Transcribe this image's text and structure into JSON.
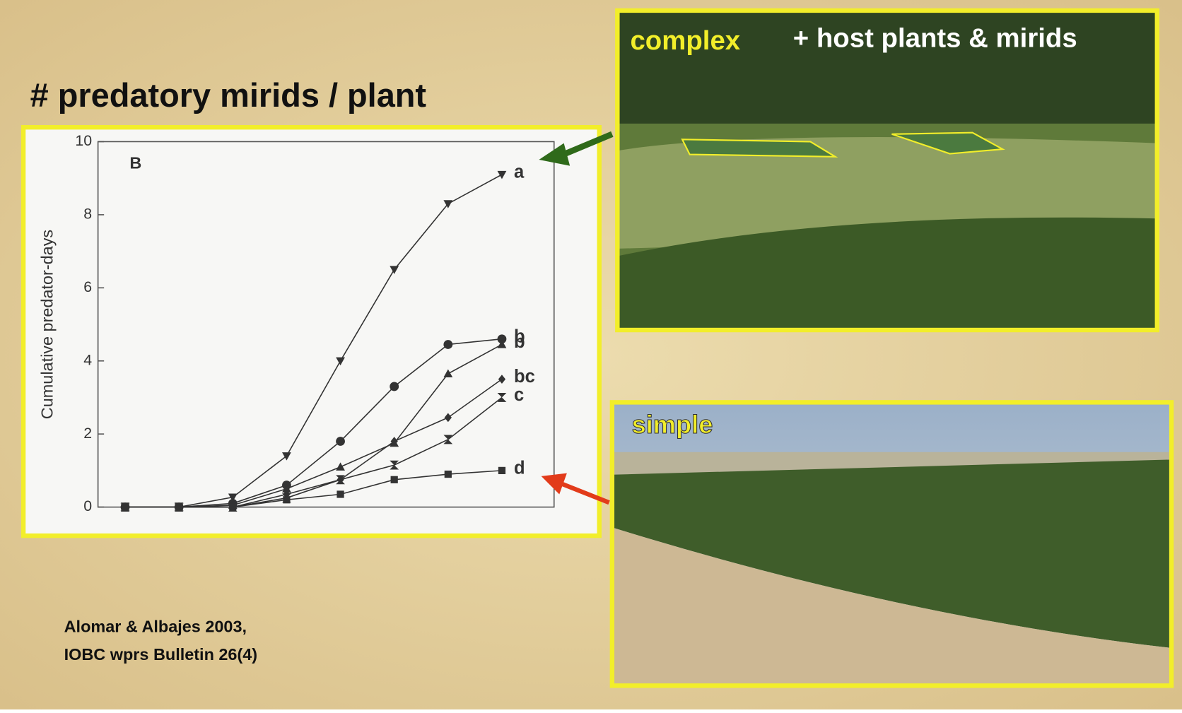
{
  "slide": {
    "title": "# predatory mirids / plant",
    "citation": [
      "Alomar & Albajes 2003,",
      "IOBC wprs Bulletin 26(4)"
    ],
    "photo_complex_label": "complex",
    "photo_complex_caption": "+ host plants & mirids",
    "photo_simple_label": "simple"
  },
  "chart_data": {
    "type": "line",
    "panel_label": "B",
    "y_label": "Cumulative predator-days",
    "categories": [
      null,
      null,
      null,
      null,
      null,
      null,
      null,
      null
    ],
    "ylim": [
      0,
      10
    ],
    "yticks": [
      0,
      2,
      4,
      6,
      8,
      10
    ],
    "series": [
      {
        "name": "a",
        "color": "#333333",
        "marker": "triangle-down",
        "values": [
          0,
          0,
          0.27,
          1.4,
          4.0,
          6.5,
          8.3,
          9.1
        ]
      },
      {
        "name": "b",
        "color": "#333333",
        "marker": "circle",
        "values": [
          0,
          0,
          0.1,
          0.6,
          1.8,
          3.3,
          4.45,
          4.6
        ]
      },
      {
        "name": "b",
        "color": "#333333",
        "marker": "triangle-up",
        "values": [
          0,
          0,
          0.05,
          0.5,
          1.1,
          1.75,
          3.65,
          4.45
        ]
      },
      {
        "name": "bc",
        "color": "#333333",
        "marker": "diamond",
        "values": [
          0,
          0,
          0,
          0.35,
          0.75,
          1.8,
          2.45,
          3.5
        ]
      },
      {
        "name": "c",
        "color": "#333333",
        "marker": "hourglass",
        "values": [
          0,
          0,
          0,
          0.25,
          0.75,
          1.15,
          1.85,
          3.0
        ]
      },
      {
        "name": "d",
        "color": "#333333",
        "marker": "square",
        "values": [
          0,
          0,
          0,
          0.2,
          0.35,
          0.75,
          0.9,
          1.0
        ]
      }
    ]
  }
}
